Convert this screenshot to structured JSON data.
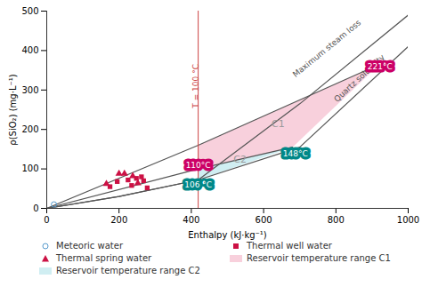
{
  "chart_data": {
    "type": "scatter",
    "xlabel": "Enthalpy (kJ·kg⁻¹)",
    "ylabel": "ρ(SiO₂) (mg·L⁻¹)",
    "xlim": [
      0,
      1000
    ],
    "ylim": [
      0,
      500
    ],
    "xticks": [
      0,
      200,
      400,
      600,
      800,
      1000
    ],
    "yticks": [
      0,
      100,
      200,
      300,
      400,
      500
    ],
    "grid": false,
    "legend": "bottom",
    "series": [
      {
        "name": "Meteoric water",
        "type": "scatter",
        "marker": "ring",
        "color": "#5599cc",
        "x": [
          20
        ],
        "values": [
          10
        ]
      },
      {
        "name": "Thermal well water",
        "type": "scatter",
        "marker": "square",
        "color": "#cc1144",
        "x": [
          175,
          195,
          225,
          235,
          248,
          262,
          268,
          278
        ],
        "values": [
          55,
          68,
          72,
          58,
          76,
          80,
          70,
          52
        ]
      },
      {
        "name": "Thermal spring water",
        "type": "scatter",
        "marker": "triangle",
        "color": "#cc1144",
        "x": [
          165,
          200,
          215,
          238,
          252
        ],
        "values": [
          62,
          88,
          88,
          82,
          64
        ]
      },
      {
        "name": "Reservoir temperature range C1",
        "type": "polygon",
        "color": "#f5c0d0",
        "x": [
          419,
          920,
          680,
          419
        ],
        "values": [
          160,
          365,
          155,
          100
        ]
      },
      {
        "name": "Reservoir temperature range C2",
        "type": "polygon",
        "color": "#c0e8ee",
        "x": [
          419,
          680,
          419
        ],
        "values": [
          72,
          155,
          100
        ]
      }
    ],
    "lines": [
      {
        "color": "#555555",
        "x": [
          0,
          200,
          419,
          700,
          1000
        ],
        "values": [
          0,
          30,
          72,
          155,
          410
        ],
        "label": "Quartz solubility",
        "label_x": 865,
        "label_y": 330
      },
      {
        "color": "#555555",
        "x": [
          0,
          200,
          419,
          700,
          1000
        ],
        "values": [
          0,
          30,
          72,
          265,
          490
        ],
        "label": "Maximum steam loss",
        "label_x": 775,
        "label_y": 405
      },
      {
        "color": "#555555",
        "x": [
          0,
          419,
          920
        ],
        "values": [
          0,
          160,
          365
        ]
      },
      {
        "color": "#555555",
        "x": [
          0,
          419,
          680
        ],
        "values": [
          0,
          100,
          155
        ]
      }
    ],
    "reference_lines": [
      {
        "x": 419,
        "color": "#cc4444",
        "label": "T = 100 °C",
        "label_y": 310
      }
    ],
    "annotations": [
      {
        "x": 922,
        "y": 360,
        "text": "221°C",
        "color": "#ffffff",
        "background": "#cc0066"
      },
      {
        "x": 688,
        "y": 138,
        "text": "148°C",
        "color": "#ffffff",
        "background": "#008888"
      },
      {
        "x": 419,
        "y": 108,
        "text": "110°C",
        "color": "#ffffff",
        "background": "#cc0066"
      },
      {
        "x": 419,
        "y": 60,
        "text": "106 °C",
        "color": "#ffffff",
        "background": "#008888"
      },
      {
        "x": 640,
        "y": 215,
        "text": "C1",
        "color": "#999999"
      },
      {
        "x": 535,
        "y": 123,
        "text": "C2",
        "color": "#999999"
      }
    ]
  }
}
